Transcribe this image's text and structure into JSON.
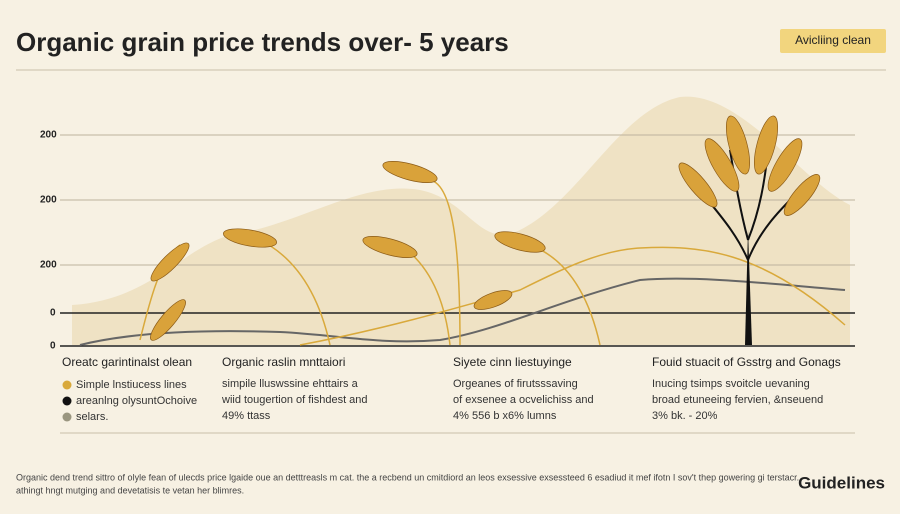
{
  "header": {
    "title": "Organic grain price trends over- 5 years",
    "badge": "Avicliing clean"
  },
  "axis_labels": [
    "200",
    "200",
    "200",
    "0",
    "0"
  ],
  "columns": [
    {
      "heading": "Oreatc garintinalst olean",
      "lines": [
        "Simple lnstiucess lines",
        "areanlng olysuntOchoive",
        "selars."
      ]
    },
    {
      "heading": "Organic raslin mnttaiori",
      "lines": [
        "simpile lluswssine ehttairs a",
        "wiid tougertion of fishdest and",
        "49% ttass"
      ]
    },
    {
      "heading": "Siyete cinn liestuyinge",
      "lines": [
        "Orgeanes of firutsssaving",
        "of exsenee a ocvelichiss and",
        "4% 556 b x6% lumns"
      ]
    },
    {
      "heading": "Fouid stuacit of Gsstrg and Gonags",
      "lines": [
        "Inucing tsimps svoitcle uevaning",
        "broad etuneeing fervien, &nseuend",
        "3% bk. - 20%"
      ]
    }
  ],
  "footer": [
    "Organic dend trend sittro of olyle fean of ulecds price lgaide oue an detttreasls m cat. the a recbend un cmitdiord an leos exsessive exsessteed 6 esadiud it mef ifotn I sov't thep gowering gi terstacr.",
    "athingt hngt mutging and devetatisis te vetan her blimres."
  ],
  "brand": "Guidelines"
}
